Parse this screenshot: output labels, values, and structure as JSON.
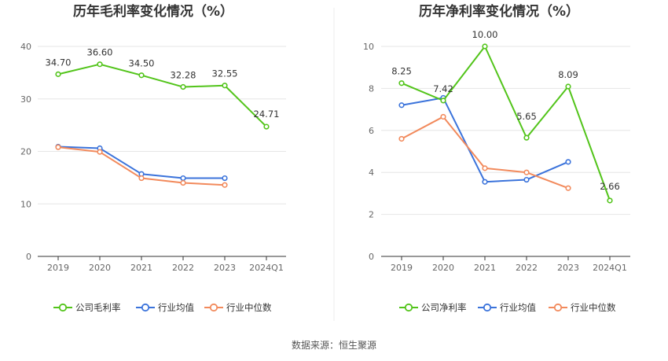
{
  "source_label": "数据来源：恒生聚源",
  "chart_data": [
    {
      "type": "line",
      "title": "历年毛利率变化情况（%）",
      "categories": [
        "2019",
        "2020",
        "2021",
        "2022",
        "2023",
        "2024Q1"
      ],
      "yticks": [
        "0",
        "10",
        "20",
        "30",
        "40"
      ],
      "ylim": [
        0,
        40
      ],
      "grid": true,
      "legend_position": "bottom",
      "series": [
        {
          "name": "公司毛利率",
          "color": "#52c41a",
          "values": [
            34.7,
            36.6,
            34.5,
            32.28,
            32.55,
            24.71
          ],
          "labels": [
            "34.70",
            "36.60",
            "34.50",
            "32.28",
            "32.55",
            "24.71"
          ]
        },
        {
          "name": "行业均值",
          "color": "#3b73db",
          "values": [
            20.9,
            20.6,
            15.7,
            14.9,
            14.9,
            null
          ]
        },
        {
          "name": "行业中位数",
          "color": "#f28a5c",
          "values": [
            20.8,
            19.9,
            14.9,
            14.0,
            13.6,
            null
          ]
        }
      ]
    },
    {
      "type": "line",
      "title": "历年净利率变化情况（%）",
      "categories": [
        "2019",
        "2020",
        "2021",
        "2022",
        "2023",
        "2024Q1"
      ],
      "yticks": [
        "0",
        "2",
        "4",
        "6",
        "8",
        "10"
      ],
      "ylim": [
        0,
        10
      ],
      "grid": true,
      "legend_position": "bottom",
      "series": [
        {
          "name": "公司净利率",
          "color": "#52c41a",
          "values": [
            8.25,
            7.42,
            10.0,
            5.65,
            8.09,
            2.66
          ],
          "labels": [
            "8.25",
            "7.42",
            "10.00",
            "5.65",
            "8.09",
            "2.66"
          ]
        },
        {
          "name": "行业均值",
          "color": "#3b73db",
          "values": [
            7.2,
            7.55,
            3.55,
            3.65,
            4.5,
            null
          ]
        },
        {
          "name": "行业中位数",
          "color": "#f28a5c",
          "values": [
            5.6,
            6.65,
            4.2,
            4.0,
            3.25,
            null
          ]
        }
      ]
    }
  ]
}
